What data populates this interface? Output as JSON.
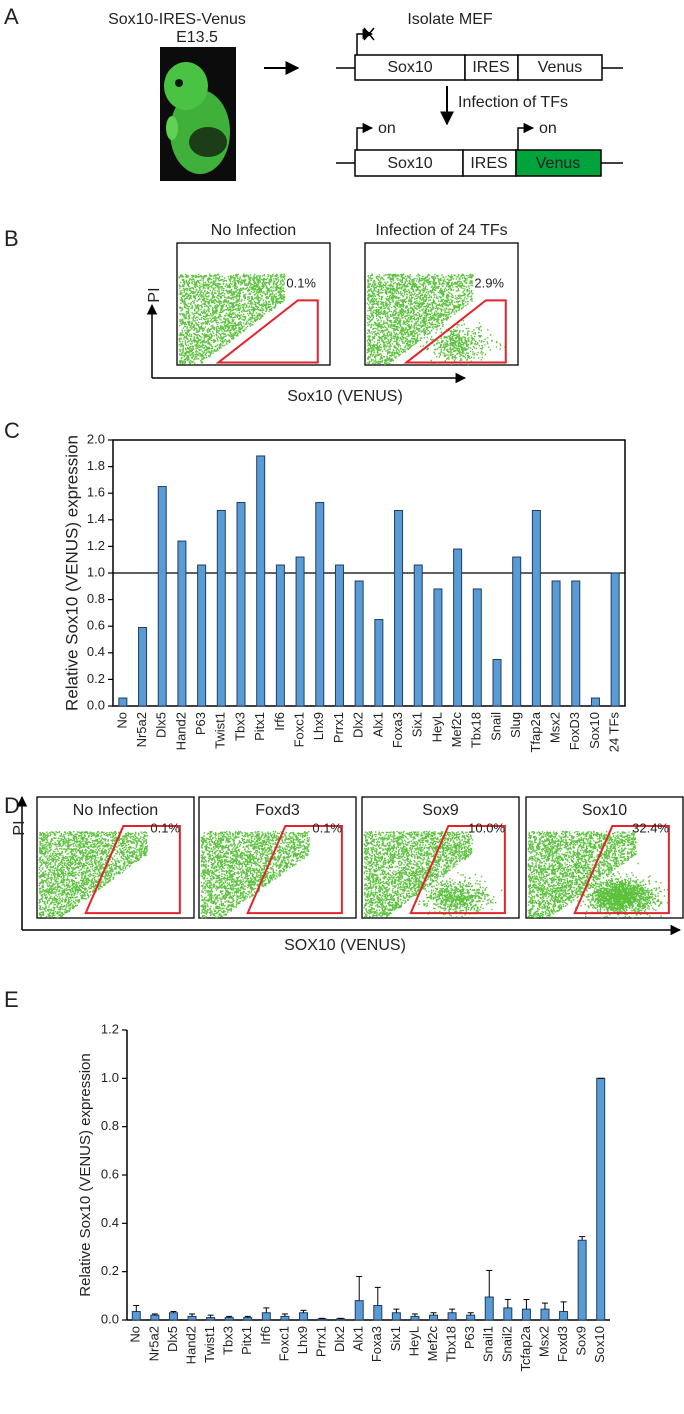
{
  "panel_labels": [
    "A",
    "B",
    "C",
    "D",
    "E"
  ],
  "panel_a": {
    "embryo": {
      "title": "Sox10-IRES-Venus",
      "stage": "E13.5"
    },
    "step1": "Isolate MEF",
    "step2": "Infection of TFs",
    "constructs": [
      {
        "parts": [
          "Sox10",
          "IRES",
          "Venus"
        ]
      },
      {
        "parts": [
          "Sox10",
          "IRES",
          "Venus"
        ]
      }
    ],
    "on_labels": [
      "on",
      "on"
    ]
  },
  "panel_b": {
    "ylabel": "PI",
    "xlabel": "Sox10 (VENUS)",
    "plots": [
      {
        "title": "No Infection",
        "percent": "0.1%"
      },
      {
        "title": "Infection of 24 TFs",
        "percent": "2.9%"
      }
    ]
  },
  "panel_d": {
    "ylabel": "PI",
    "xlabel": "SOX10 (VENUS)",
    "plots": [
      {
        "title": "No Infection",
        "percent": "0.1%"
      },
      {
        "title": "Foxd3",
        "percent": "0.1%"
      },
      {
        "title": "Sox9",
        "percent": "10.0%"
      },
      {
        "title": "Sox10",
        "percent": "32.4%"
      }
    ]
  },
  "chart_data": [
    {
      "type": "bar",
      "ylabel": "Relative Sox10 (VENUS) expression",
      "categories": [
        "No",
        "Nr5a2",
        "Dlx5",
        "Hand2",
        "P63",
        "Twist1",
        "Tbx3",
        "Pitx1",
        "Irf6",
        "Foxc1",
        "Lhx9",
        "Prrx1",
        "Dlx2",
        "Alx1",
        "Foxa3",
        "Six1",
        "HeyL",
        "Mef2c",
        "Tbx18",
        "Snail",
        "Slug",
        "Tfap2a",
        "Msx2",
        "FoxD3",
        "Sox10",
        "24 TFs"
      ],
      "values": [
        0.06,
        0.59,
        1.65,
        1.24,
        1.06,
        1.47,
        1.53,
        1.88,
        1.06,
        1.12,
        1.53,
        1.06,
        0.94,
        0.65,
        1.47,
        1.06,
        0.88,
        1.18,
        0.88,
        0.35,
        1.12,
        1.47,
        0.94,
        0.94,
        0.06,
        1.0
      ],
      "color": "#5b9bd5",
      "ylim": [
        0,
        2
      ],
      "yticks": [
        {
          "value": 0,
          "label": "0.0"
        },
        {
          "value": 0.2,
          "label": "0.2"
        },
        {
          "value": 0.4,
          "label": "0.4"
        },
        {
          "value": 0.6,
          "label": "0.6"
        },
        {
          "value": 0.8,
          "label": "0.8"
        },
        {
          "value": 1,
          "label": "1.0"
        },
        {
          "value": 1.2,
          "label": "1.2"
        },
        {
          "value": 1.4,
          "label": "1.4"
        },
        {
          "value": 1.6,
          "label": "1.6"
        },
        {
          "value": 1.8,
          "label": "1.8"
        },
        {
          "value": 2,
          "label": "2.0"
        }
      ],
      "hline": 1,
      "frame": true
    },
    {
      "type": "bar",
      "ylabel": "Relative Sox10 (VENUS) expression",
      "categories": [
        "No",
        "Nr5a2",
        "Dlx5",
        "Hand2",
        "Twist1",
        "Tbx3",
        "Pitx1",
        "Irf6",
        "Foxc1",
        "Lhx9",
        "Prrx1",
        "Dlx2",
        "Alx1",
        "Foxa3",
        "Six1",
        "HeyL",
        "Mef2c",
        "Tbx18",
        "P63",
        "Snail1",
        "Snail2",
        "Tcfap2a",
        "Msx2",
        "Foxd3",
        "Sox9",
        "Sox10"
      ],
      "values": [
        0.035,
        0.02,
        0.03,
        0.015,
        0.01,
        0.01,
        0.01,
        0.03,
        0.015,
        0.03,
        0.005,
        0.005,
        0.08,
        0.06,
        0.03,
        0.015,
        0.02,
        0.03,
        0.02,
        0.095,
        0.05,
        0.045,
        0.045,
        0.035,
        0.33,
        1.0
      ],
      "errors": [
        0.025,
        0.005,
        0.005,
        0.01,
        0.01,
        0.005,
        0.005,
        0.02,
        0.01,
        0.01,
        0.002,
        0.002,
        0.1,
        0.075,
        0.015,
        0.01,
        0.01,
        0.015,
        0.01,
        0.11,
        0.035,
        0.04,
        0.025,
        0.04,
        0.015,
        0
      ],
      "color": "#5b9bd5",
      "ylim": [
        0,
        1.2
      ],
      "yticks": [
        {
          "value": 0,
          "label": "0.0"
        },
        {
          "value": 0.2,
          "label": "0.2"
        },
        {
          "value": 0.4,
          "label": "0.4"
        },
        {
          "value": 0.6,
          "label": "0.6"
        },
        {
          "value": 0.8,
          "label": "0.8"
        },
        {
          "value": 1,
          "label": "1.0"
        },
        {
          "value": 1.2,
          "label": "1.2"
        }
      ],
      "frame": false
    }
  ]
}
